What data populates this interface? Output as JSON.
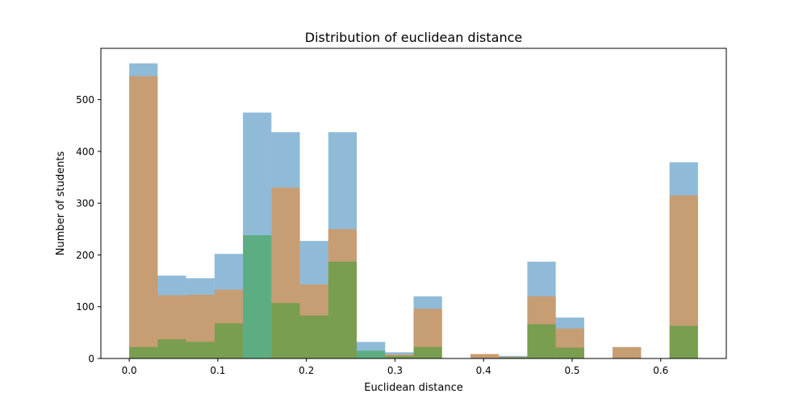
{
  "chart_data": {
    "type": "bar",
    "title": "Distribution of euclidean distance",
    "xlabel": "Euclidean distance",
    "ylabel": "Number of students",
    "xlim": [
      -0.032,
      0.674
    ],
    "ylim": [
      0,
      599
    ],
    "xticks": [
      0.0,
      0.1,
      0.2,
      0.3,
      0.4,
      0.5,
      0.6
    ],
    "xtick_labels": [
      "0.0",
      "0.1",
      "0.2",
      "0.3",
      "0.4",
      "0.5",
      "0.6"
    ],
    "yticks": [
      0,
      100,
      200,
      300,
      400,
      500
    ],
    "ytick_labels": [
      "0",
      "100",
      "200",
      "300",
      "400",
      "500"
    ],
    "grid": false,
    "legend": "none",
    "bin_edges": [
      0.0,
      0.0321,
      0.0642,
      0.0963,
      0.1284,
      0.1605,
      0.1926,
      0.2247,
      0.2568,
      0.2889,
      0.321,
      0.3531,
      0.3852,
      0.4173,
      0.4494,
      0.4815,
      0.5136,
      0.5457,
      0.5778,
      0.6099,
      0.642
    ],
    "series": [
      {
        "color": "#1f77b4",
        "opacity": 0.5,
        "values": [
          570,
          160,
          155,
          202,
          475,
          437,
          227,
          437,
          32,
          12,
          120,
          0,
          8,
          5,
          187,
          79,
          0,
          22,
          0,
          379
        ]
      },
      {
        "color": "#ff7f0e",
        "opacity": 0.5,
        "values": [
          545,
          122,
          123,
          133,
          0,
          330,
          143,
          250,
          0,
          8,
          96,
          0,
          9,
          3,
          120,
          58,
          0,
          22,
          0,
          315
        ]
      },
      {
        "color": "#2ca02c",
        "opacity": 0.5,
        "values": [
          22,
          37,
          32,
          68,
          238,
          107,
          83,
          187,
          15,
          5,
          22,
          0,
          0,
          2,
          66,
          21,
          0,
          0,
          0,
          63
        ]
      }
    ]
  }
}
